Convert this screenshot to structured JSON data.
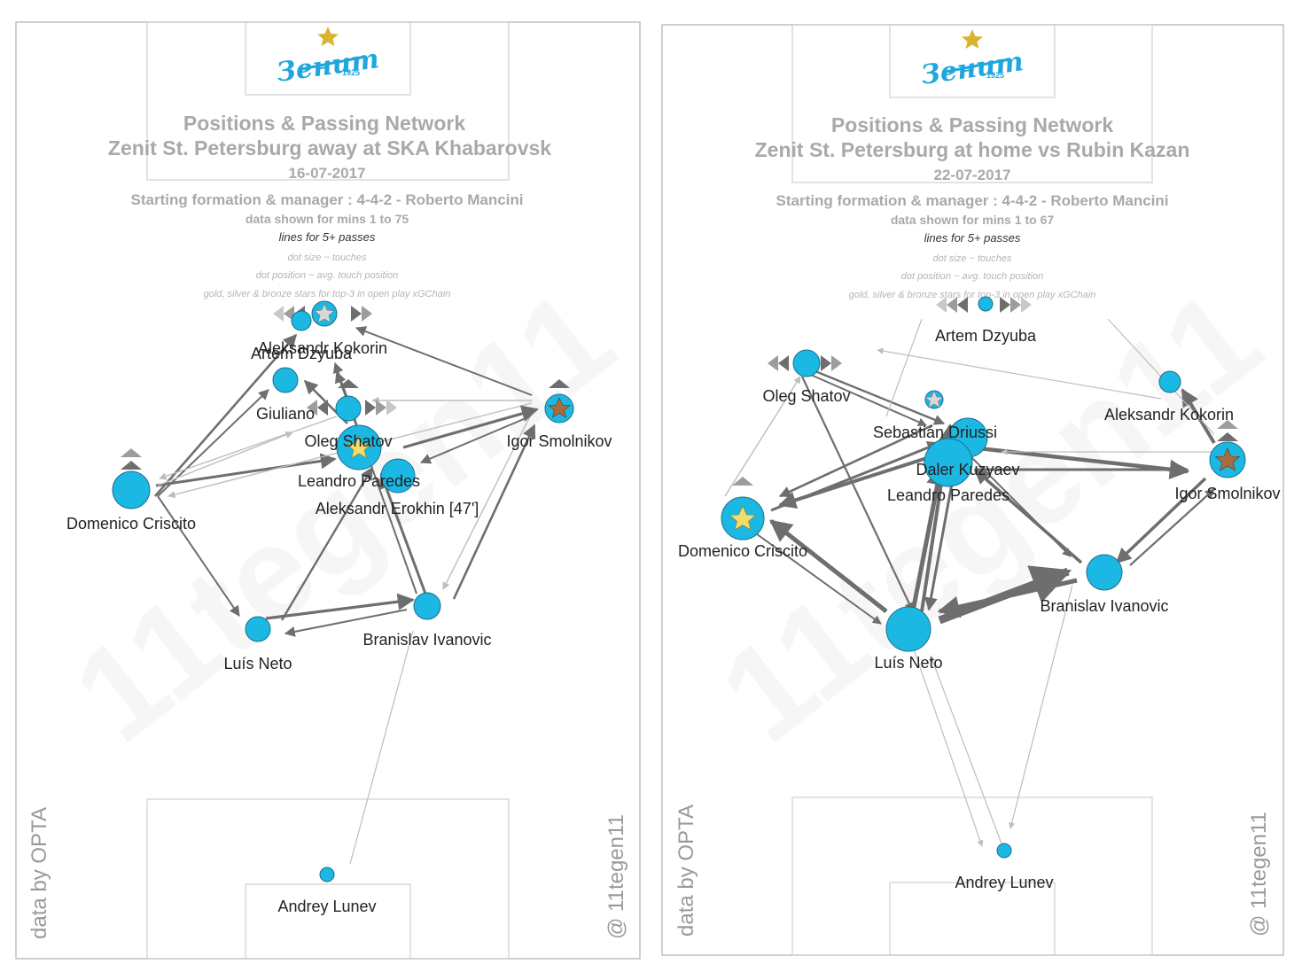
{
  "colors": {
    "dot": "#1bb8e3",
    "dot_stroke": "#1b6f8c",
    "edge": "#6e6e6e",
    "edge_light": "#bdbdbd",
    "gold": "#f2dc6b",
    "silver": "#d8d8d8",
    "bronze": "#a86d3e",
    "logo": "#1ea6dd",
    "logo_star": "#d9b431"
  },
  "panels": [
    {
      "logo_text": "Зенит",
      "logo_year": "1925",
      "title": "Positions & Passing Network",
      "subtitle": "Zenit St. Petersburg  away at  SKA Khabarovsk",
      "date": "16-07-2017",
      "formation": "Starting formation & manager : 4-4-2 - Roberto Mancini",
      "mins": "data shown for mins 1 to 75",
      "lines_note": "lines for 5+ passes",
      "note1": "dot size ~ touches",
      "note2": "dot position ~ avg. touch position",
      "note3": "gold, silver & bronze stars for top-3 in open play xGChain",
      "source": "data by OPTA",
      "handle": "@ 11tegen11",
      "watermark": "11tegen11",
      "players": [
        {
          "name": "Aleksandr Kokorin",
          "star": "silver"
        },
        {
          "name": "Artem Dzyuba",
          "star": ""
        },
        {
          "name": "Giuliano",
          "star": ""
        },
        {
          "name": "Oleg Shatov",
          "star": ""
        },
        {
          "name": "Igor Smolnikov",
          "star": "bronze"
        },
        {
          "name": "Leandro Paredes",
          "star": "gold"
        },
        {
          "name": "Aleksandr Erokhin [47']",
          "star": ""
        },
        {
          "name": "Domenico Criscito",
          "star": ""
        },
        {
          "name": "Luís Neto",
          "star": ""
        },
        {
          "name": "Branislav Ivanovic",
          "star": ""
        },
        {
          "name": "Andrey Lunev",
          "star": ""
        }
      ]
    },
    {
      "logo_text": "Зенит",
      "logo_year": "1925",
      "title": "Positions & Passing Network",
      "subtitle": "Zenit St. Petersburg at home vs Rubin Kazan",
      "date": "22-07-2017",
      "formation": "Starting formation & manager : 4-4-2 - Roberto Mancini",
      "mins": "data shown for mins 1 to 67",
      "lines_note": "lines for 5+ passes",
      "note1": "dot size ~ touches",
      "note2": "dot position ~ avg. touch position",
      "note3": "gold, silver & bronze stars for top-3 in open play xGChain",
      "source": "data by OPTA",
      "handle": "@ 11tegen11",
      "watermark": "11tegen11",
      "players": [
        {
          "name": "Artem Dzyuba",
          "star": ""
        },
        {
          "name": "Oleg Shatov",
          "star": ""
        },
        {
          "name": "Aleksandr Kokorin",
          "star": ""
        },
        {
          "name": "Sebastián Driussi",
          "star": "silver"
        },
        {
          "name": "Daler Kuzyaev",
          "star": ""
        },
        {
          "name": "Leandro Paredes",
          "star": ""
        },
        {
          "name": "Igor Smolnikov",
          "star": "bronze"
        },
        {
          "name": "Domenico Criscito",
          "star": "gold"
        },
        {
          "name": "Branislav Ivanovic",
          "star": ""
        },
        {
          "name": "Luís Neto",
          "star": ""
        },
        {
          "name": "Andrey Lunev",
          "star": ""
        }
      ]
    }
  ]
}
